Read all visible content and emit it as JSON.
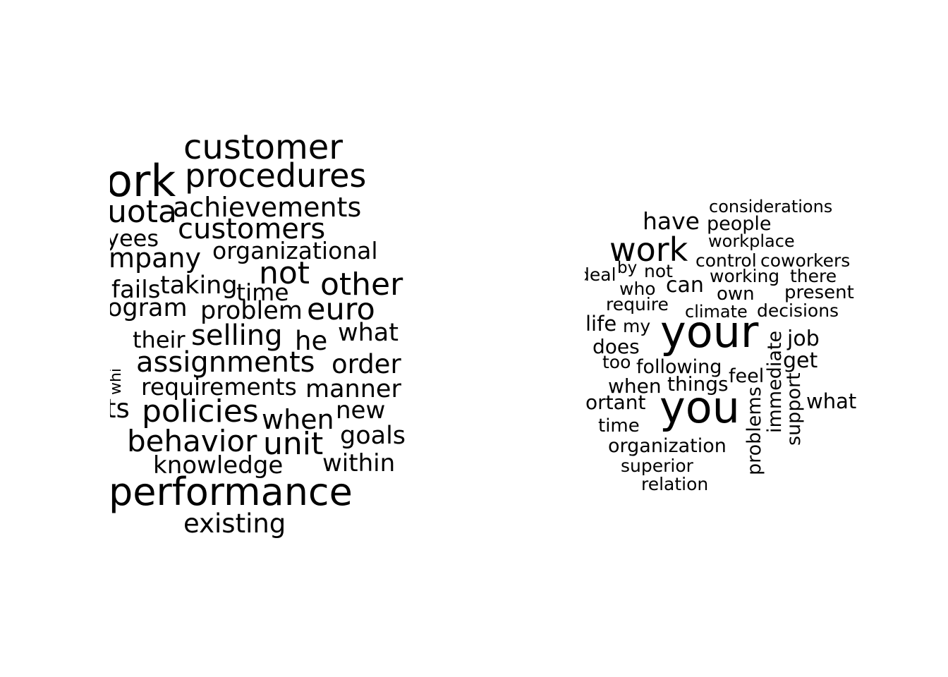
{
  "left_cloud": {
    "words": [
      "customer",
      "procedures",
      "ork",
      "uota",
      "achievements",
      "customers",
      "yees",
      "organizational",
      "mpany",
      "not",
      "other",
      "fails",
      "taking",
      "time",
      "euro",
      "ogram",
      "problem",
      "what",
      "their",
      "selling",
      "he",
      "assignments",
      "order",
      "requirements",
      "manner",
      "ts",
      "new",
      "policies",
      "when",
      "goals",
      "behavior",
      "unit",
      "within",
      "knowledge",
      "performance",
      "existing",
      "whi"
    ]
  },
  "right_cloud": {
    "words": [
      "considerations",
      "have",
      "people",
      "workplace",
      "work",
      "control",
      "coworkers",
      "by",
      "not",
      "deal",
      "working",
      "there",
      "who",
      "can",
      "own",
      "present",
      "require",
      "climate",
      "decisions",
      "life",
      "my",
      "your",
      "job",
      "does",
      "immediate",
      "get",
      "too",
      "following",
      "feel",
      "when",
      "things",
      "support",
      "ortant",
      "you",
      "what",
      "problems",
      "time",
      "organization",
      "superior",
      "relation"
    ]
  }
}
